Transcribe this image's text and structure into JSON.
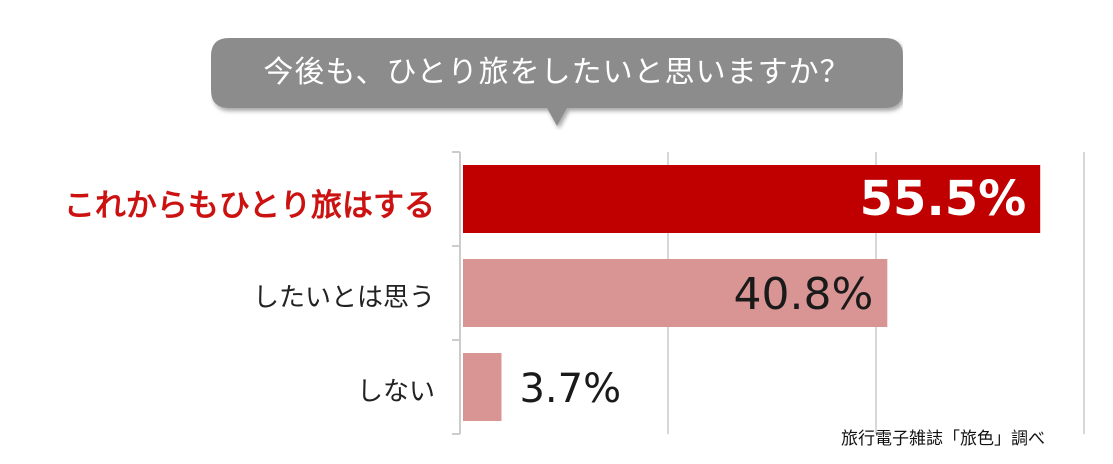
{
  "colors": {
    "bubble": "#8c8c8c",
    "highlight_bar": "#c00000",
    "bar": "#d99594",
    "highlight_label": "#cc1111",
    "gridline": "#cccccc"
  },
  "chart_data": {
    "type": "bar",
    "orientation": "horizontal",
    "title": "今後も、ひとり旅をしたいと思いますか？",
    "categories": [
      "これからもひとり旅はする",
      "したいとは思う",
      "しない"
    ],
    "values": [
      55.5,
      40.8,
      3.7
    ],
    "value_labels": [
      "55.5%",
      "40.8%",
      "3.7%"
    ],
    "highlight_index": 0,
    "xlim": [
      0,
      60
    ],
    "grid": true,
    "source": "旅行電子雑誌「旅色」調べ"
  }
}
